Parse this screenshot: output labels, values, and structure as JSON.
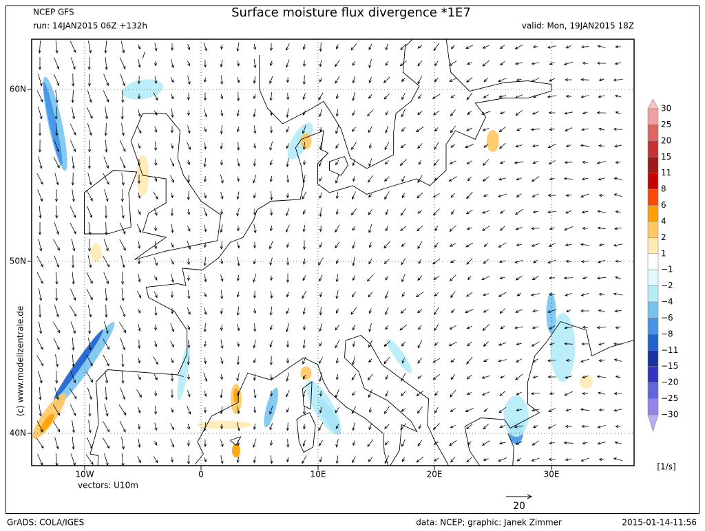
{
  "header": {
    "source": "NCEP GFS",
    "title": "Surface moisture flux divergence *1E7",
    "run": "run: 14JAN2015 06Z +132h",
    "valid": "valid: Mon, 19JAN2015 18Z"
  },
  "map": {
    "lat_labels": [
      "60N",
      "50N",
      "40N"
    ],
    "lon_labels": [
      "10W",
      "0",
      "10E",
      "20E",
      "30E"
    ],
    "vectors_label": "vectors: U10m",
    "credit": "(c) www.modellzentrale.de",
    "vector_scale": "20"
  },
  "legend": {
    "labels": [
      "30",
      "25",
      "20",
      "15",
      "11",
      "8",
      "6",
      "4",
      "2",
      "1",
      "−1",
      "−2",
      "−4",
      "−6",
      "−8",
      "−11",
      "−15",
      "−20",
      "−25",
      "−30"
    ],
    "colors": [
      "#f6c4c4",
      "#f0a0a0",
      "#e06464",
      "#c83232",
      "#a01818",
      "#c80000",
      "#ff4a00",
      "#ffa000",
      "#ffc860",
      "#ffeab4",
      "#ffffff",
      "#e2f8ff",
      "#b4ecf8",
      "#78c4f0",
      "#4494e8",
      "#2064d2",
      "#1834a0",
      "#3434c4",
      "#6464dc",
      "#9484ea",
      "#bcaaf4"
    ],
    "unit": "[1/s]"
  },
  "footer": {
    "left": "GrADS: COLA/IGES",
    "center": "data: NCEP; graphic: Janek Zimmer",
    "right": "2015-01-14-11:56"
  }
}
